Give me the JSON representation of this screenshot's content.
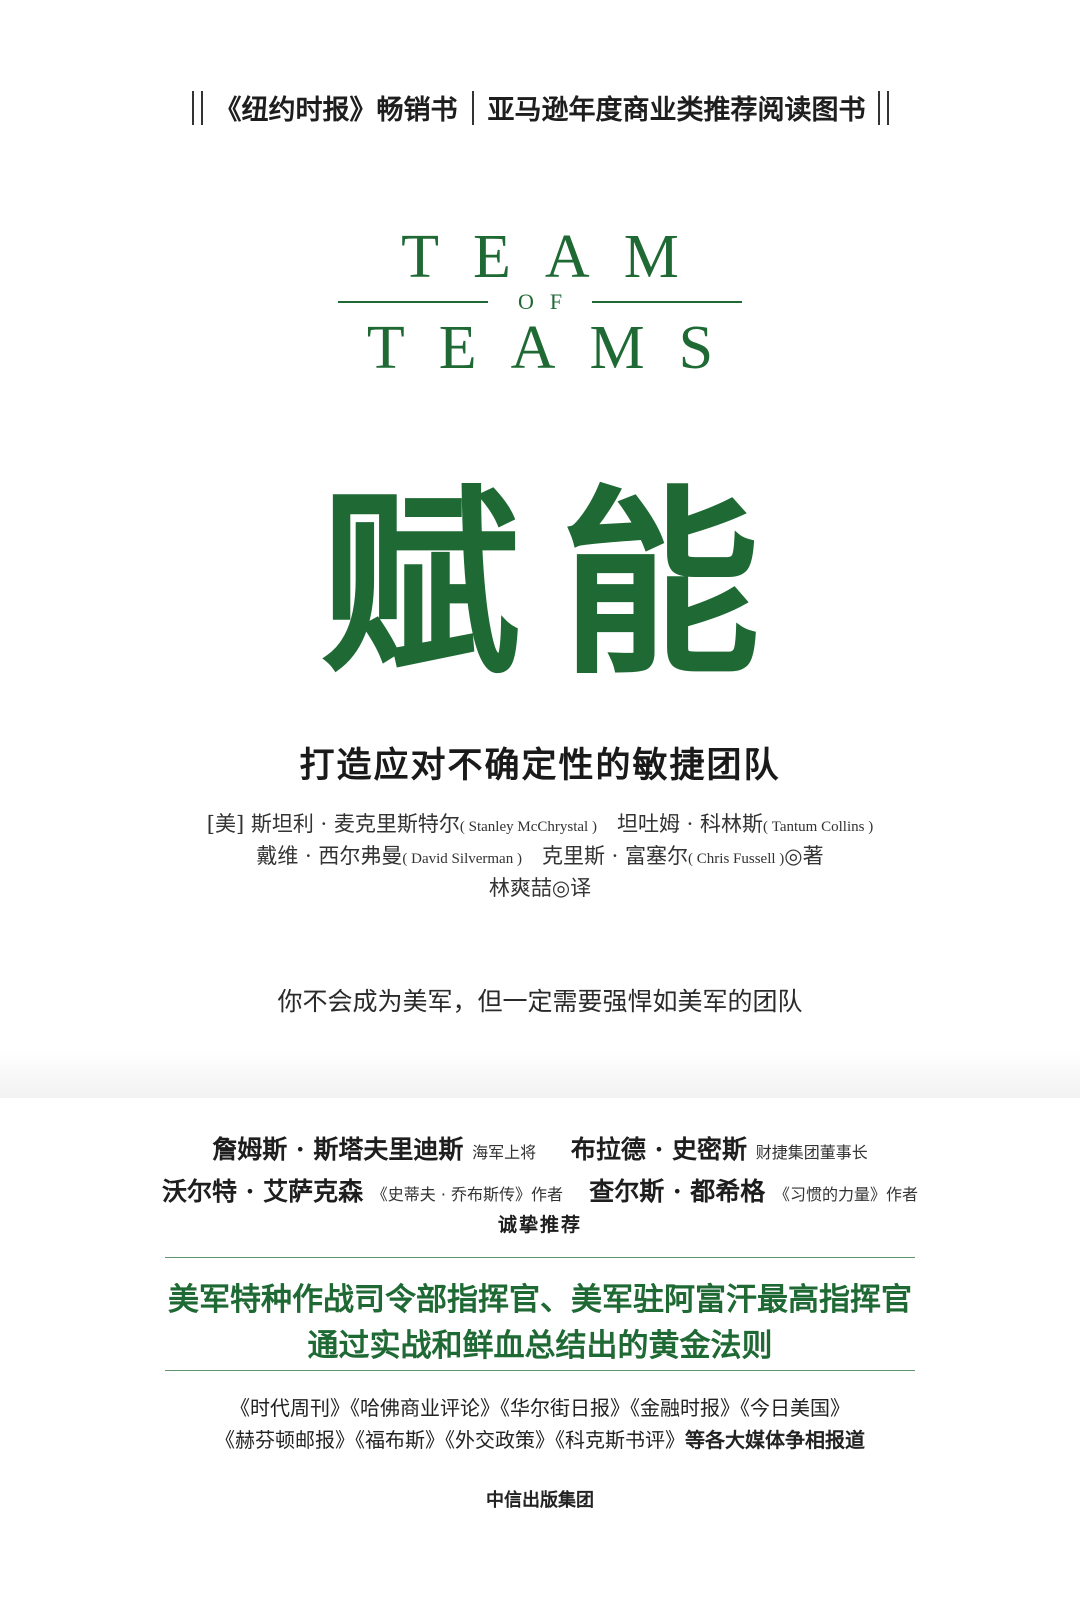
{
  "top_banner": {
    "left": "《纽约时报》畅销书",
    "right": "亚马逊年度商业类推荐阅读图书"
  },
  "english_title": {
    "line1": "TEAM",
    "of": "OF",
    "line2": "TEAMS"
  },
  "title": "赋能",
  "subtitle": "打造应对不确定性的敏捷团队",
  "authors": {
    "line1_prefix": "[美] 斯坦利 · 麦克里斯特尔",
    "line1_en1": "( Stanley McChrystal )",
    "line1_mid": "坦吐姆 · 科林斯",
    "line1_en2": "( Tantum Collins )",
    "line2_a": "戴维 · 西尔弗曼",
    "line2_en1": "( David Silverman )",
    "line2_b": "克里斯 · 富塞尔",
    "line2_en2": "( Chris Fussell )",
    "line2_suffix": "◎著",
    "translator": "林爽喆◎译"
  },
  "tagline": "你不会成为美军，但一定需要强悍如美军的团队",
  "recommenders": {
    "r1_name1": "詹姆斯 · 斯塔夫里迪斯",
    "r1_role1": "海军上将",
    "r1_name2": "布拉德 · 史密斯",
    "r1_role2": "财捷集团董事长",
    "r2_name1": "沃尔特 · 艾萨克森",
    "r2_role1": "《史蒂夫 · 乔布斯传》作者",
    "r2_name2": "查尔斯 · 都希格",
    "r2_role2": "《习惯的力量》作者",
    "endorse": "诚挚推荐"
  },
  "highlight": {
    "line1": "美军特种作战司令部指挥官、美军驻阿富汗最高指挥官",
    "line2": "通过实战和鲜血总结出的黄金法则"
  },
  "media": {
    "line1": "《时代周刊》《哈佛商业评论》《华尔街日报》《金融时报》《今日美国》",
    "line2_titles": "《赫芬顿邮报》《福布斯》《外交政策》《科克斯书评》",
    "line2_suffix": "等各大媒体争相报道"
  },
  "publisher": "中信出版集团",
  "colors": {
    "brand_green": "#1f6a34",
    "text_dark": "#1e1e1e"
  }
}
